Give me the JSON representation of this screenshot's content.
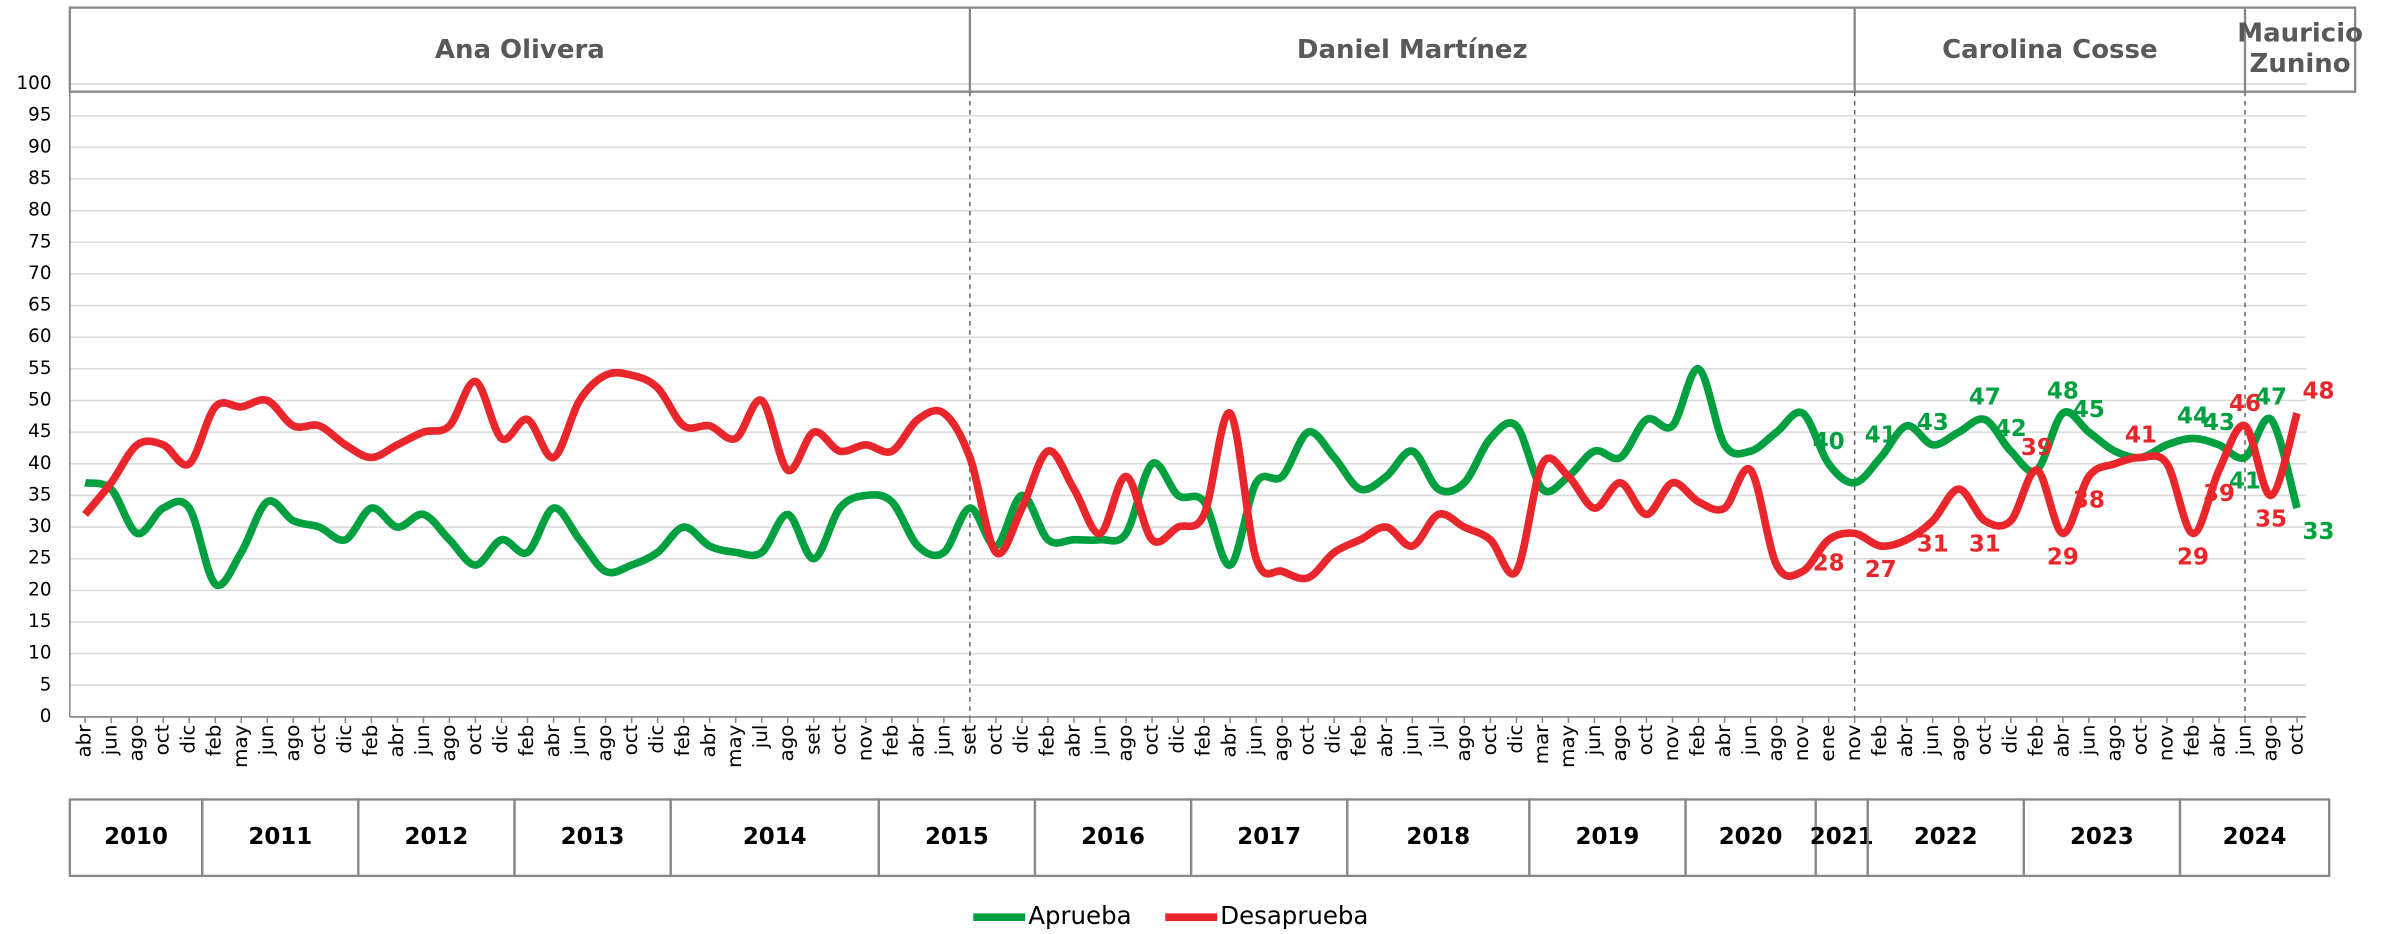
{
  "chart_data": {
    "type": "line",
    "categories": [
      "abr",
      "jun",
      "ago",
      "oct",
      "dic",
      "feb",
      "may",
      "jun",
      "ago",
      "oct",
      "dic",
      "feb",
      "abr",
      "jun",
      "ago",
      "oct",
      "dic",
      "feb",
      "abr",
      "jun",
      "ago",
      "oct",
      "dic",
      "feb",
      "abr",
      "may",
      "jul",
      "ago",
      "set",
      "oct",
      "nov",
      "feb",
      "abr",
      "jun",
      "set",
      "oct",
      "dic",
      "feb",
      "abr",
      "jun",
      "ago",
      "oct",
      "dic",
      "feb",
      "abr",
      "jun",
      "ago",
      "oct",
      "dic",
      "feb",
      "abr",
      "jun",
      "jul",
      "ago",
      "oct",
      "dic",
      "mar",
      "may",
      "jun",
      "ago",
      "oct",
      "nov",
      "feb",
      "abr",
      "jun",
      "ago",
      "nov",
      "ene",
      "nov",
      "feb",
      "abr",
      "jun",
      "ago",
      "oct",
      "dic",
      "feb",
      "abr",
      "jun",
      "ago",
      "oct",
      "nov",
      "feb",
      "abr",
      "jun",
      "ago",
      "oct"
    ],
    "year_groups": [
      {
        "label": "2010",
        "count": 5
      },
      {
        "label": "2011",
        "count": 6
      },
      {
        "label": "2012",
        "count": 6
      },
      {
        "label": "2013",
        "count": 6
      },
      {
        "label": "2014",
        "count": 8
      },
      {
        "label": "2015",
        "count": 6
      },
      {
        "label": "2016",
        "count": 6
      },
      {
        "label": "2017",
        "count": 6
      },
      {
        "label": "2018",
        "count": 7
      },
      {
        "label": "2019",
        "count": 6
      },
      {
        "label": "2020",
        "count": 5
      },
      {
        "label": "2021",
        "count": 2
      },
      {
        "label": "2022",
        "count": 6
      },
      {
        "label": "2023",
        "count": 6
      },
      {
        "label": "2024",
        "count": 5
      }
    ],
    "period_groups": [
      {
        "label": "Ana Olivera",
        "count": 34
      },
      {
        "label": "Daniel Martínez",
        "count": 34
      },
      {
        "label": "Carolina Cosse",
        "count": 15
      },
      {
        "label": "Mauricio Zunino",
        "count": 3
      }
    ],
    "series": [
      {
        "name": "Aprueba",
        "color": "#00a040",
        "values": [
          37,
          36,
          29,
          33,
          33,
          21,
          26,
          34,
          31,
          30,
          28,
          33,
          30,
          32,
          28,
          24,
          28,
          26,
          33,
          28,
          23,
          24,
          26,
          30,
          27,
          26,
          26,
          32,
          25,
          33,
          35,
          34,
          27,
          26,
          33,
          27,
          35,
          28,
          28,
          28,
          29,
          40,
          35,
          34,
          24,
          37,
          38,
          45,
          41,
          36,
          38,
          42,
          36,
          37,
          44,
          46,
          36,
          38,
          42,
          41,
          47,
          46,
          55,
          43,
          42,
          45,
          48,
          40,
          37,
          41,
          46,
          43,
          45,
          47,
          42,
          39,
          48,
          45,
          42,
          41,
          43,
          44,
          43,
          41,
          47,
          33
        ],
        "value_labels": [
          null,
          null,
          null,
          null,
          null,
          null,
          null,
          null,
          null,
          null,
          null,
          null,
          null,
          null,
          null,
          null,
          null,
          null,
          null,
          null,
          null,
          null,
          null,
          null,
          null,
          null,
          null,
          null,
          null,
          null,
          null,
          null,
          null,
          null,
          null,
          null,
          null,
          null,
          null,
          null,
          null,
          null,
          null,
          null,
          null,
          null,
          null,
          null,
          null,
          null,
          null,
          null,
          null,
          null,
          null,
          null,
          null,
          null,
          null,
          null,
          null,
          null,
          null,
          null,
          null,
          null,
          null,
          "40",
          null,
          "41",
          null,
          "43",
          null,
          "47",
          "42",
          null,
          "48",
          "45",
          null,
          "41",
          null,
          "44",
          "43",
          "41",
          "47",
          "33"
        ]
      },
      {
        "name": "Desaprueba",
        "color": "#e8262b",
        "values": [
          32,
          37,
          43,
          43,
          40,
          49,
          49,
          50,
          46,
          46,
          43,
          41,
          43,
          45,
          46,
          53,
          44,
          47,
          41,
          50,
          54,
          54,
          52,
          46,
          46,
          44,
          50,
          39,
          45,
          42,
          43,
          42,
          47,
          48,
          41,
          26,
          33,
          42,
          36,
          29,
          38,
          28,
          30,
          32,
          48,
          25,
          23,
          22,
          26,
          28,
          30,
          27,
          32,
          30,
          28,
          23,
          40,
          38,
          33,
          37,
          32,
          37,
          34,
          33,
          39,
          24,
          23,
          28,
          29,
          27,
          28,
          31,
          36,
          31,
          31,
          39,
          29,
          38,
          40,
          41,
          40,
          29,
          39,
          46,
          35,
          48
        ],
        "value_labels": [
          null,
          null,
          null,
          null,
          null,
          null,
          null,
          null,
          null,
          null,
          null,
          null,
          null,
          null,
          null,
          null,
          null,
          null,
          null,
          null,
          null,
          null,
          null,
          null,
          null,
          null,
          null,
          null,
          null,
          null,
          null,
          null,
          null,
          null,
          null,
          null,
          null,
          null,
          null,
          null,
          null,
          null,
          null,
          null,
          null,
          null,
          null,
          null,
          null,
          null,
          null,
          null,
          null,
          null,
          null,
          null,
          null,
          null,
          null,
          null,
          null,
          null,
          null,
          null,
          null,
          null,
          null,
          "28",
          null,
          "27",
          null,
          "31",
          null,
          "31",
          null,
          "39",
          "29",
          "38",
          null,
          "41",
          null,
          "29",
          "39",
          "46",
          "35",
          "48"
        ]
      }
    ],
    "ylim": [
      0,
      100
    ],
    "yticks": [
      0,
      5,
      10,
      15,
      20,
      25,
      30,
      35,
      40,
      45,
      50,
      55,
      60,
      65,
      70,
      75,
      80,
      85,
      90,
      95,
      100
    ],
    "grid": true,
    "legend": "bottom"
  }
}
